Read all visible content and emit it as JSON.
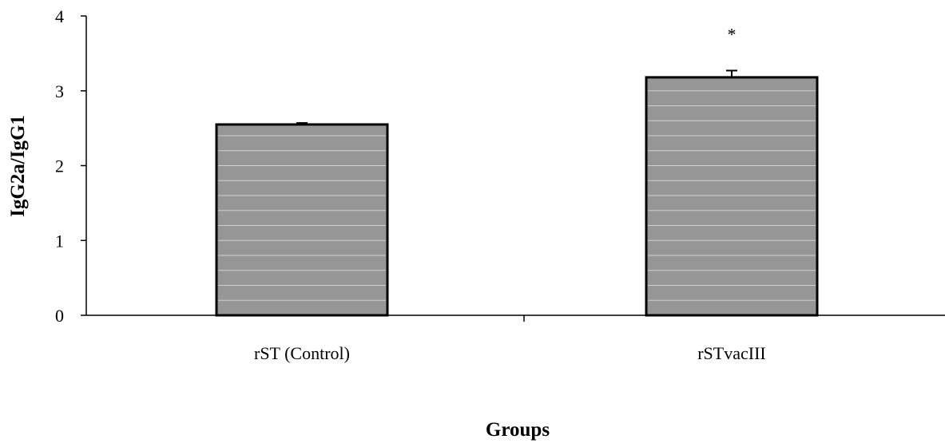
{
  "chart_data": {
    "type": "bar",
    "title": "",
    "xlabel": "Groups",
    "ylabel": "IgG2a/IgG1",
    "categories": [
      "rST (Control)",
      "rSTvacIII"
    ],
    "series": [
      {
        "values": [
          2.55,
          3.18
        ],
        "error": [
          0.02,
          0.09
        ],
        "color": "#969696"
      }
    ],
    "annotations": [
      {
        "category": "rSTvacIII",
        "text": "*"
      }
    ],
    "ylim": [
      0,
      4
    ],
    "yticks": [
      "0",
      "1",
      "2",
      "3",
      "4"
    ],
    "grid": "horizontal lines inside bars only",
    "legend": "none"
  },
  "colors": {
    "bar_fill": "#969696",
    "bar_stroke": "#000000",
    "inner_grid": "#d0d0d0",
    "axis": "#000000"
  }
}
